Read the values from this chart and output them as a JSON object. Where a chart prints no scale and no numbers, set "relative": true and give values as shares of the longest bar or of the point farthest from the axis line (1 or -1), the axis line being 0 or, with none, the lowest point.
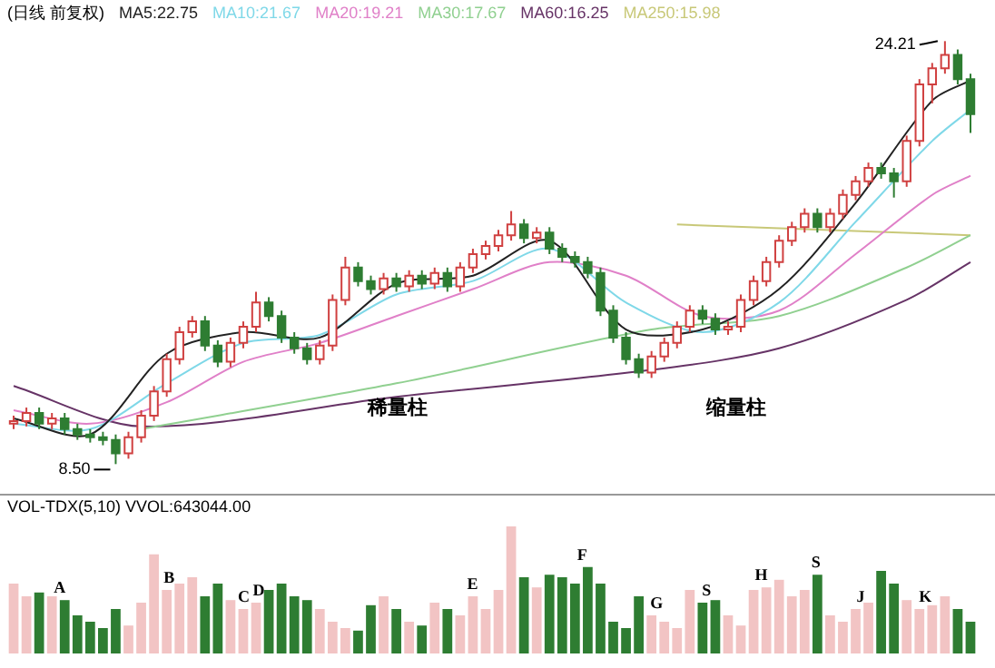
{
  "chart_data": [
    {
      "type": "candlestick",
      "title": "(日线 前复权)",
      "categories": [
        null,
        null,
        null,
        null,
        null,
        null,
        null,
        null,
        null,
        null,
        null,
        null,
        null,
        null,
        null,
        null,
        null,
        null,
        null,
        null,
        null,
        null,
        null,
        null,
        null,
        null,
        null,
        null,
        null,
        null,
        null,
        null,
        null,
        null,
        null,
        null,
        null,
        null,
        null,
        null,
        null,
        null,
        null,
        null,
        null,
        null,
        null,
        null,
        null,
        null,
        null,
        null,
        null,
        null,
        null,
        null,
        null,
        null,
        null,
        null,
        null,
        null,
        null,
        null,
        null,
        null,
        null,
        null,
        null,
        null,
        null,
        null,
        null,
        null,
        null,
        null
      ],
      "ohlc": [
        [
          10.0,
          10.3,
          9.8,
          10.1
        ],
        [
          10.1,
          10.6,
          9.9,
          10.4
        ],
        [
          10.4,
          10.6,
          9.8,
          10.0
        ],
        [
          10.0,
          10.4,
          9.8,
          10.2
        ],
        [
          10.2,
          10.4,
          9.6,
          9.8
        ],
        [
          9.8,
          10.0,
          9.4,
          9.6
        ],
        [
          9.6,
          9.8,
          9.3,
          9.5
        ],
        [
          9.5,
          9.7,
          9.2,
          9.4
        ],
        [
          9.4,
          9.6,
          8.5,
          8.9
        ],
        [
          8.9,
          9.7,
          8.7,
          9.5
        ],
        [
          9.5,
          10.5,
          9.3,
          10.3
        ],
        [
          10.3,
          11.4,
          10.1,
          11.2
        ],
        [
          11.2,
          12.6,
          11.0,
          12.4
        ],
        [
          12.4,
          13.6,
          12.2,
          13.4
        ],
        [
          13.4,
          14.0,
          13.2,
          13.8
        ],
        [
          13.8,
          14.0,
          12.7,
          12.9
        ],
        [
          12.9,
          13.1,
          12.1,
          12.3
        ],
        [
          12.3,
          13.2,
          12.1,
          13.0
        ],
        [
          13.0,
          13.8,
          12.8,
          13.6
        ],
        [
          13.6,
          14.9,
          13.4,
          14.5
        ],
        [
          14.5,
          14.7,
          13.8,
          14.0
        ],
        [
          14.0,
          14.2,
          13.0,
          13.2
        ],
        [
          13.2,
          13.4,
          12.6,
          12.8
        ],
        [
          12.8,
          13.0,
          12.2,
          12.4
        ],
        [
          12.4,
          13.1,
          12.2,
          12.9
        ],
        [
          12.9,
          14.8,
          12.7,
          14.6
        ],
        [
          14.6,
          16.2,
          14.4,
          15.8
        ],
        [
          15.8,
          16.0,
          15.1,
          15.3
        ],
        [
          15.3,
          15.5,
          14.8,
          15.0
        ],
        [
          15.0,
          15.6,
          14.8,
          15.4
        ],
        [
          15.4,
          15.6,
          14.9,
          15.1
        ],
        [
          15.1,
          15.7,
          14.9,
          15.5
        ],
        [
          15.5,
          15.7,
          15.0,
          15.2
        ],
        [
          15.2,
          15.8,
          15.0,
          15.6
        ],
        [
          15.6,
          15.8,
          14.9,
          15.1
        ],
        [
          15.1,
          16.0,
          14.9,
          15.8
        ],
        [
          15.8,
          16.5,
          15.6,
          16.3
        ],
        [
          16.3,
          16.8,
          16.1,
          16.6
        ],
        [
          16.6,
          17.2,
          16.4,
          17.0
        ],
        [
          17.0,
          17.9,
          16.8,
          17.4
        ],
        [
          17.4,
          17.6,
          16.7,
          16.9
        ],
        [
          16.9,
          17.3,
          16.7,
          17.1
        ],
        [
          17.1,
          17.3,
          16.3,
          16.5
        ],
        [
          16.5,
          16.7,
          16.0,
          16.2
        ],
        [
          16.2,
          16.4,
          15.8,
          16.0
        ],
        [
          16.0,
          16.2,
          15.4,
          15.6
        ],
        [
          15.6,
          15.8,
          14.0,
          14.2
        ],
        [
          14.2,
          14.4,
          13.0,
          13.2
        ],
        [
          13.2,
          13.4,
          12.2,
          12.4
        ],
        [
          12.4,
          12.6,
          11.7,
          11.9
        ],
        [
          11.9,
          12.7,
          11.7,
          12.5
        ],
        [
          12.5,
          13.2,
          12.3,
          13.0
        ],
        [
          13.0,
          13.8,
          12.8,
          13.6
        ],
        [
          13.6,
          14.4,
          13.4,
          14.2
        ],
        [
          14.2,
          14.4,
          13.7,
          13.9
        ],
        [
          13.9,
          14.1,
          13.3,
          13.5
        ],
        [
          13.5,
          13.8,
          13.3,
          13.6
        ],
        [
          13.6,
          14.8,
          13.4,
          14.6
        ],
        [
          14.6,
          15.5,
          14.4,
          15.3
        ],
        [
          15.3,
          16.2,
          15.1,
          16.0
        ],
        [
          16.0,
          17.0,
          15.8,
          16.8
        ],
        [
          16.8,
          17.5,
          16.6,
          17.3
        ],
        [
          17.3,
          18.0,
          17.1,
          17.8
        ],
        [
          17.8,
          18.0,
          17.1,
          17.3
        ],
        [
          17.3,
          18.0,
          17.1,
          17.8
        ],
        [
          17.8,
          18.7,
          17.6,
          18.5
        ],
        [
          18.5,
          19.2,
          18.3,
          19.0
        ],
        [
          19.0,
          19.7,
          18.8,
          19.5
        ],
        [
          19.5,
          19.7,
          19.1,
          19.3
        ],
        [
          19.3,
          19.5,
          18.4,
          19.0
        ],
        [
          19.0,
          20.7,
          18.8,
          20.5
        ],
        [
          20.5,
          22.8,
          20.3,
          22.6
        ],
        [
          22.6,
          23.4,
          21.9,
          23.2
        ],
        [
          23.2,
          24.21,
          23.0,
          23.7
        ],
        [
          23.7,
          23.9,
          22.6,
          22.8
        ],
        [
          22.8,
          23.0,
          20.8,
          21.5
        ]
      ],
      "series": [
        {
          "type": "line",
          "name": "MA5:22.75",
          "color": "#222222",
          "values": [
            10.2,
            null,
            null,
            null,
            null,
            null,
            9.6,
            null,
            null,
            null,
            null,
            null,
            12.6,
            null,
            null,
            null,
            null,
            null,
            13.4,
            null,
            null,
            null,
            null,
            null,
            13.2,
            null,
            null,
            null,
            null,
            null,
            15.2,
            null,
            null,
            null,
            null,
            null,
            15.5,
            null,
            null,
            null,
            null,
            null,
            16.8,
            null,
            null,
            null,
            null,
            null,
            13.5,
            null,
            null,
            null,
            null,
            null,
            13.5,
            null,
            null,
            null,
            null,
            null,
            15.0,
            null,
            null,
            null,
            null,
            null,
            18.2,
            null,
            null,
            null,
            null,
            null,
            22.0,
            null,
            null,
            22.75
          ]
        },
        {
          "type": "line",
          "name": "MA10:21.67",
          "color": "#7fd8e8",
          "values": [
            10.0,
            null,
            null,
            null,
            null,
            null,
            9.8,
            null,
            null,
            null,
            null,
            null,
            11.5,
            null,
            null,
            null,
            null,
            null,
            13.0,
            null,
            null,
            null,
            null,
            null,
            13.3,
            null,
            null,
            null,
            null,
            null,
            14.8,
            null,
            null,
            null,
            null,
            null,
            15.3,
            null,
            null,
            null,
            null,
            null,
            16.5,
            null,
            null,
            null,
            null,
            null,
            14.5,
            null,
            null,
            null,
            null,
            null,
            13.4,
            null,
            null,
            null,
            null,
            null,
            14.5,
            null,
            null,
            null,
            null,
            null,
            17.5,
            null,
            null,
            null,
            null,
            null,
            20.5,
            null,
            null,
            21.67
          ]
        },
        {
          "type": "line",
          "name": "MA20:19.21",
          "color": "#e080c8",
          "values": [
            10.5,
            null,
            null,
            null,
            null,
            null,
            10.0,
            null,
            null,
            null,
            null,
            null,
            10.8,
            null,
            null,
            null,
            null,
            null,
            12.3,
            null,
            null,
            null,
            null,
            null,
            13.0,
            null,
            null,
            null,
            null,
            null,
            14.0,
            null,
            null,
            null,
            null,
            null,
            15.0,
            null,
            null,
            null,
            null,
            null,
            16.0,
            null,
            null,
            null,
            null,
            null,
            15.5,
            null,
            null,
            null,
            null,
            null,
            14.0,
            null,
            null,
            null,
            null,
            null,
            14.2,
            null,
            null,
            null,
            null,
            null,
            16.3,
            null,
            null,
            null,
            null,
            null,
            18.5,
            null,
            null,
            19.21
          ]
        },
        {
          "type": "line",
          "name": "MA30:17.67",
          "color": "#90d090",
          "values": [
            null,
            null,
            null,
            null,
            null,
            null,
            null,
            null,
            null,
            null,
            9.8,
            null,
            null,
            null,
            null,
            null,
            null,
            null,
            null,
            null,
            null,
            null,
            null,
            null,
            null,
            null,
            null,
            null,
            null,
            null,
            11.5,
            null,
            null,
            null,
            null,
            null,
            null,
            null,
            null,
            null,
            null,
            null,
            null,
            null,
            null,
            null,
            null,
            null,
            null,
            null,
            13.5,
            null,
            null,
            null,
            null,
            null,
            null,
            null,
            null,
            null,
            14.0,
            null,
            null,
            null,
            null,
            null,
            null,
            null,
            null,
            null,
            15.8,
            null,
            null,
            null,
            null,
            17.0
          ]
        },
        {
          "type": "line",
          "name": "MA60:16.25",
          "color": "#663366",
          "values": [
            11.4,
            null,
            null,
            null,
            null,
            null,
            null,
            null,
            null,
            null,
            9.9,
            null,
            null,
            null,
            null,
            null,
            null,
            null,
            null,
            null,
            null,
            null,
            null,
            null,
            null,
            null,
            null,
            null,
            null,
            null,
            11.0,
            null,
            null,
            null,
            null,
            null,
            null,
            null,
            null,
            null,
            null,
            null,
            null,
            null,
            null,
            null,
            null,
            null,
            null,
            null,
            12.0,
            null,
            null,
            null,
            null,
            null,
            null,
            null,
            null,
            null,
            12.8,
            null,
            null,
            null,
            null,
            null,
            null,
            null,
            null,
            null,
            14.6,
            null,
            null,
            null,
            null,
            16.0
          ]
        },
        {
          "type": "line",
          "name": "MA250:15.98",
          "color": "#c8c878",
          "values": [
            null,
            null,
            null,
            null,
            null,
            null,
            null,
            null,
            null,
            null,
            null,
            null,
            null,
            null,
            null,
            null,
            null,
            null,
            null,
            null,
            null,
            null,
            null,
            null,
            null,
            null,
            null,
            null,
            null,
            null,
            null,
            null,
            null,
            null,
            null,
            null,
            null,
            null,
            null,
            null,
            null,
            null,
            null,
            null,
            null,
            null,
            null,
            null,
            null,
            null,
            null,
            null,
            17.4,
            null,
            null,
            null,
            null,
            null,
            null,
            null,
            null,
            null,
            null,
            null,
            null,
            null,
            null,
            null,
            null,
            null,
            null,
            null,
            null,
            null,
            null,
            17.0
          ]
        }
      ],
      "annotations": [
        "24.21",
        "8.50",
        "稀量柱",
        "缩量柱"
      ],
      "legend": "top left"
    },
    {
      "type": "bar",
      "title": "VOL-TDX(5,10) VVOL:643044.00",
      "relative": true,
      "categories": [
        null,
        null,
        null,
        null,
        null,
        null,
        null,
        null,
        null,
        null,
        null,
        null,
        null,
        null,
        null,
        null,
        null,
        null,
        null,
        null,
        null,
        null,
        null,
        null,
        null,
        null,
        null,
        null,
        null,
        null,
        null,
        null,
        null,
        null,
        null,
        null,
        null,
        null,
        null,
        null,
        null,
        null,
        null,
        null,
        null,
        null,
        null,
        null,
        null,
        null,
        null,
        null,
        null,
        null,
        null,
        null,
        null,
        null,
        null,
        null,
        null,
        null,
        null,
        null,
        null,
        null,
        null,
        null,
        null,
        null,
        null,
        null,
        null,
        null,
        null,
        null
      ],
      "values": [
        0.55,
        0.45,
        0.48,
        0.45,
        0.42,
        0.3,
        0.25,
        0.2,
        0.35,
        0.22,
        0.4,
        0.78,
        0.5,
        0.55,
        0.6,
        0.45,
        0.55,
        0.42,
        0.35,
        0.4,
        0.5,
        0.55,
        0.45,
        0.42,
        0.35,
        0.25,
        0.2,
        0.18,
        0.38,
        0.45,
        0.35,
        0.25,
        0.22,
        0.4,
        0.35,
        0.3,
        0.45,
        0.35,
        0.5,
        1,
        0.6,
        0.52,
        0.62,
        0.6,
        0.55,
        0.68,
        0.55,
        0.25,
        0.2,
        0.45,
        0.3,
        0.25,
        0.2,
        0.5,
        0.4,
        0.42,
        0.3,
        0.22,
        0.5,
        0.52,
        0.58,
        0.45,
        0.5,
        0.62,
        0.3,
        0.25,
        0.35,
        0.4,
        0.65,
        0.55,
        0.42,
        0.35,
        0.38,
        0.45,
        0.35,
        0.25
      ],
      "colors": [
        "#f2c4c4",
        "#f2c4c4",
        "#2e7d32",
        "#f2c4c4",
        "#2e7d32",
        "#2e7d32",
        "#2e7d32",
        "#2e7d32",
        "#2e7d32",
        "#f2c4c4",
        "#f2c4c4",
        "#f2c4c4",
        "#f2c4c4",
        "#f2c4c4",
        "#f2c4c4",
        "#2e7d32",
        "#2e7d32",
        "#f2c4c4",
        "#f2c4c4",
        "#f2c4c4",
        "#2e7d32",
        "#2e7d32",
        "#2e7d32",
        "#2e7d32",
        "#f2c4c4",
        "#f2c4c4",
        "#f2c4c4",
        "#2e7d32",
        "#2e7d32",
        "#f2c4c4",
        "#2e7d32",
        "#f2c4c4",
        "#2e7d32",
        "#f2c4c4",
        "#2e7d32",
        "#f2c4c4",
        "#f2c4c4",
        "#f2c4c4",
        "#f2c4c4",
        "#f2c4c4",
        "#2e7d32",
        "#f2c4c4",
        "#2e7d32",
        "#2e7d32",
        "#2e7d32",
        "#2e7d32",
        "#2e7d32",
        "#2e7d32",
        "#2e7d32",
        "#2e7d32",
        "#f2c4c4",
        "#f2c4c4",
        "#f2c4c4",
        "#f2c4c4",
        "#2e7d32",
        "#2e7d32",
        "#f2c4c4",
        "#f2c4c4",
        "#f2c4c4",
        "#f2c4c4",
        "#f2c4c4",
        "#f2c4c4",
        "#f2c4c4",
        "#2e7d32",
        "#f2c4c4",
        "#f2c4c4",
        "#f2c4c4",
        "#f2c4c4",
        "#2e7d32",
        "#2e7d32",
        "#f2c4c4",
        "#f2c4c4",
        "#f2c4c4",
        "#f2c4c4",
        "#2e7d32",
        "#2e7d32"
      ],
      "annotations": [
        "A",
        "B",
        "C",
        "D",
        "E",
        "F",
        "G",
        "S",
        "H",
        "S",
        "J",
        "K"
      ]
    }
  ]
}
